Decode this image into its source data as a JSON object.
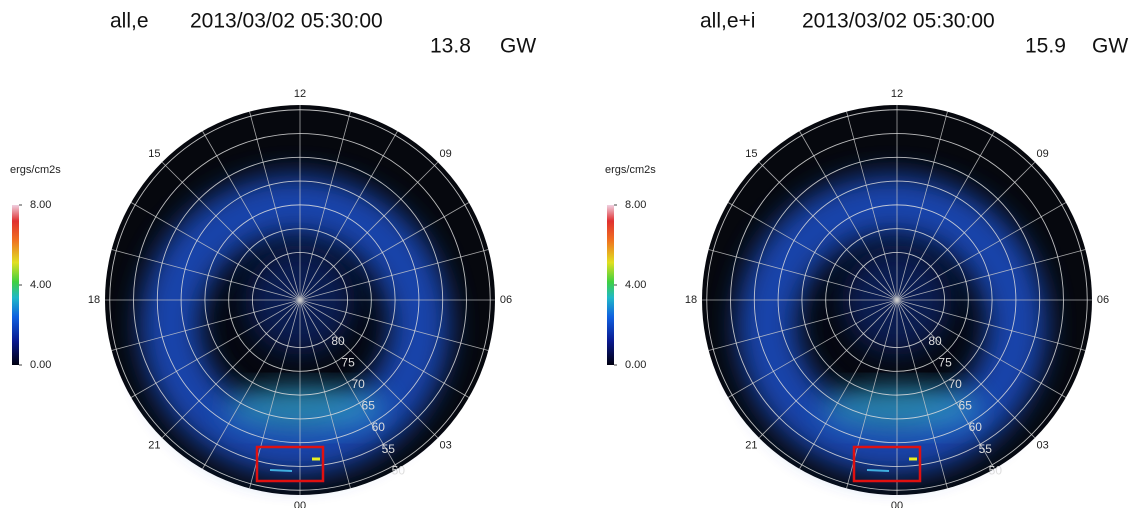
{
  "chart_data": [
    {
      "type": "polar",
      "title": "all,e",
      "timestamp": "2013/03/02 05:30:00",
      "power": 13.8,
      "power_unit": "GW",
      "colorbar_label": "ergs/cm2s",
      "clim": [
        0,
        8
      ],
      "cticks": [
        {
          "value": 0,
          "label": "0.00"
        },
        {
          "value": 4,
          "label": "4.00"
        },
        {
          "value": 8,
          "label": "8.00"
        }
      ],
      "angle_labels": [
        "12",
        "09",
        "06",
        "03",
        "00",
        "21",
        "18",
        "15"
      ],
      "rlim": [
        90,
        49
      ],
      "rticks": [
        80,
        75,
        70,
        65,
        60,
        55,
        50
      ],
      "grid": true
    },
    {
      "type": "polar",
      "title": "all,e+i",
      "timestamp": "2013/03/02 05:30:00",
      "power": 15.9,
      "power_unit": "GW",
      "colorbar_label": "ergs/cm2s",
      "clim": [
        0,
        8
      ],
      "cticks": [
        {
          "value": 0,
          "label": "0.00"
        },
        {
          "value": 4,
          "label": "4.00"
        },
        {
          "value": 8,
          "label": "8.00"
        }
      ],
      "angle_labels": [
        "12",
        "09",
        "06",
        "03",
        "00",
        "21",
        "18",
        "15"
      ],
      "rlim": [
        90,
        49
      ],
      "rticks": [
        80,
        75,
        70,
        65,
        60,
        55,
        50
      ],
      "grid": true
    }
  ]
}
